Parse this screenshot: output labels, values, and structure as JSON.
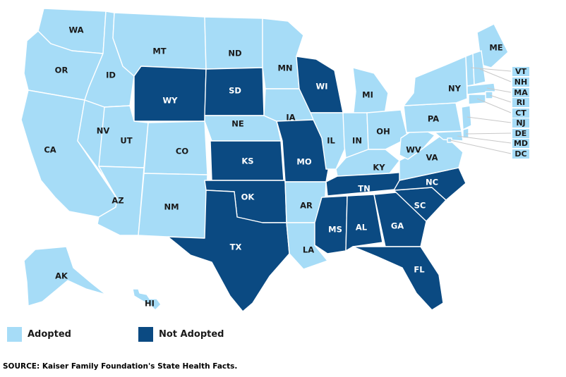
{
  "colors": {
    "adopted": "#a6dcf7",
    "not_adopted": "#0b4a82",
    "border": "#ffffff"
  },
  "legend": [
    {
      "key": "adopted",
      "label": "Adopted"
    },
    {
      "key": "not_adopted",
      "label": "Not Adopted"
    }
  ],
  "source": "SOURCE: Kaiser Family Foundation's State Health Facts.",
  "states": [
    {
      "abbr": "WA",
      "status": "adopted"
    },
    {
      "abbr": "OR",
      "status": "adopted"
    },
    {
      "abbr": "CA",
      "status": "adopted"
    },
    {
      "abbr": "ID",
      "status": "adopted"
    },
    {
      "abbr": "NV",
      "status": "adopted"
    },
    {
      "abbr": "MT",
      "status": "adopted"
    },
    {
      "abbr": "WY",
      "status": "not_adopted"
    },
    {
      "abbr": "UT",
      "status": "adopted"
    },
    {
      "abbr": "AZ",
      "status": "adopted"
    },
    {
      "abbr": "CO",
      "status": "adopted"
    },
    {
      "abbr": "NM",
      "status": "adopted"
    },
    {
      "abbr": "ND",
      "status": "adopted"
    },
    {
      "abbr": "SD",
      "status": "not_adopted"
    },
    {
      "abbr": "NE",
      "status": "adopted"
    },
    {
      "abbr": "KS",
      "status": "not_adopted"
    },
    {
      "abbr": "OK",
      "status": "not_adopted"
    },
    {
      "abbr": "TX",
      "status": "not_adopted"
    },
    {
      "abbr": "MN",
      "status": "adopted"
    },
    {
      "abbr": "IA",
      "status": "adopted"
    },
    {
      "abbr": "MO",
      "status": "not_adopted"
    },
    {
      "abbr": "AR",
      "status": "adopted"
    },
    {
      "abbr": "LA",
      "status": "adopted"
    },
    {
      "abbr": "WI",
      "status": "not_adopted"
    },
    {
      "abbr": "IL",
      "status": "adopted"
    },
    {
      "abbr": "MI",
      "status": "adopted"
    },
    {
      "abbr": "IN",
      "status": "adopted"
    },
    {
      "abbr": "OH",
      "status": "adopted"
    },
    {
      "abbr": "KY",
      "status": "adopted"
    },
    {
      "abbr": "TN",
      "status": "not_adopted"
    },
    {
      "abbr": "MS",
      "status": "not_adopted"
    },
    {
      "abbr": "AL",
      "status": "not_adopted"
    },
    {
      "abbr": "GA",
      "status": "not_adopted"
    },
    {
      "abbr": "FL",
      "status": "not_adopted"
    },
    {
      "abbr": "SC",
      "status": "not_adopted"
    },
    {
      "abbr": "NC",
      "status": "not_adopted"
    },
    {
      "abbr": "VA",
      "status": "adopted"
    },
    {
      "abbr": "WV",
      "status": "adopted"
    },
    {
      "abbr": "PA",
      "status": "adopted"
    },
    {
      "abbr": "NY",
      "status": "adopted"
    },
    {
      "abbr": "ME",
      "status": "adopted"
    },
    {
      "abbr": "AK",
      "status": "adopted"
    },
    {
      "abbr": "HI",
      "status": "adopted"
    },
    {
      "abbr": "VT",
      "status": "adopted"
    },
    {
      "abbr": "NH",
      "status": "adopted"
    },
    {
      "abbr": "MA",
      "status": "adopted"
    },
    {
      "abbr": "RI",
      "status": "adopted"
    },
    {
      "abbr": "CT",
      "status": "adopted"
    },
    {
      "abbr": "NJ",
      "status": "adopted"
    },
    {
      "abbr": "DE",
      "status": "adopted"
    },
    {
      "abbr": "MD",
      "status": "adopted"
    },
    {
      "abbr": "DC",
      "status": "adopted"
    }
  ]
}
